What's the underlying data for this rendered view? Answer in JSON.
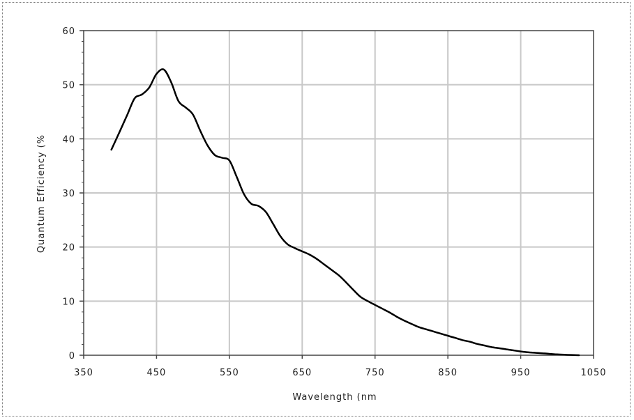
{
  "chart_data": {
    "type": "line",
    "xlabel": "Wavelength (nm",
    "ylabel": "Quantum Efficiency (%",
    "xlim": [
      350,
      1050
    ],
    "ylim": [
      0,
      60
    ],
    "x_ticks": [
      350,
      450,
      550,
      650,
      750,
      850,
      950,
      1050
    ],
    "x_tick_labels": [
      "350",
      "450",
      "550",
      "650",
      "750",
      "850",
      "950",
      "1050"
    ],
    "y_ticks": [
      0,
      10,
      20,
      30,
      40,
      50,
      60
    ],
    "y_tick_labels": [
      "0",
      "10",
      "20",
      "30",
      "40",
      "50",
      "60"
    ],
    "grid": true,
    "legend": "none",
    "line_color": "#000000",
    "grid_color": "#c8c8c8",
    "series": [
      {
        "x": [
          388,
          400,
          410,
          420,
          430,
          440,
          450,
          460,
          470,
          480,
          490,
          500,
          510,
          520,
          530,
          540,
          550,
          560,
          570,
          580,
          590,
          600,
          610,
          620,
          630,
          640,
          650,
          660,
          670,
          680,
          690,
          700,
          710,
          720,
          730,
          740,
          750,
          760,
          770,
          780,
          790,
          800,
          810,
          820,
          830,
          840,
          850,
          860,
          870,
          880,
          890,
          900,
          910,
          920,
          930,
          940,
          950,
          960,
          970,
          980,
          990,
          1000,
          1010,
          1020,
          1030
        ],
        "y": [
          38,
          41.5,
          44.5,
          47.5,
          48.2,
          49.5,
          52,
          52.8,
          50.5,
          47,
          45.8,
          44.5,
          41.5,
          38.8,
          37,
          36.5,
          36,
          33,
          29.8,
          28,
          27.6,
          26.5,
          24.3,
          22,
          20.5,
          19.8,
          19.2,
          18.6,
          17.8,
          16.8,
          15.8,
          14.8,
          13.5,
          12.1,
          10.8,
          10,
          9.3,
          8.6,
          7.9,
          7.1,
          6.4,
          5.8,
          5.2,
          4.8,
          4.4,
          4.0,
          3.6,
          3.2,
          2.8,
          2.5,
          2.1,
          1.8,
          1.5,
          1.3,
          1.1,
          0.9,
          0.7,
          0.55,
          0.45,
          0.35,
          0.25,
          0.15,
          0.1,
          0.05,
          0
        ]
      }
    ]
  }
}
